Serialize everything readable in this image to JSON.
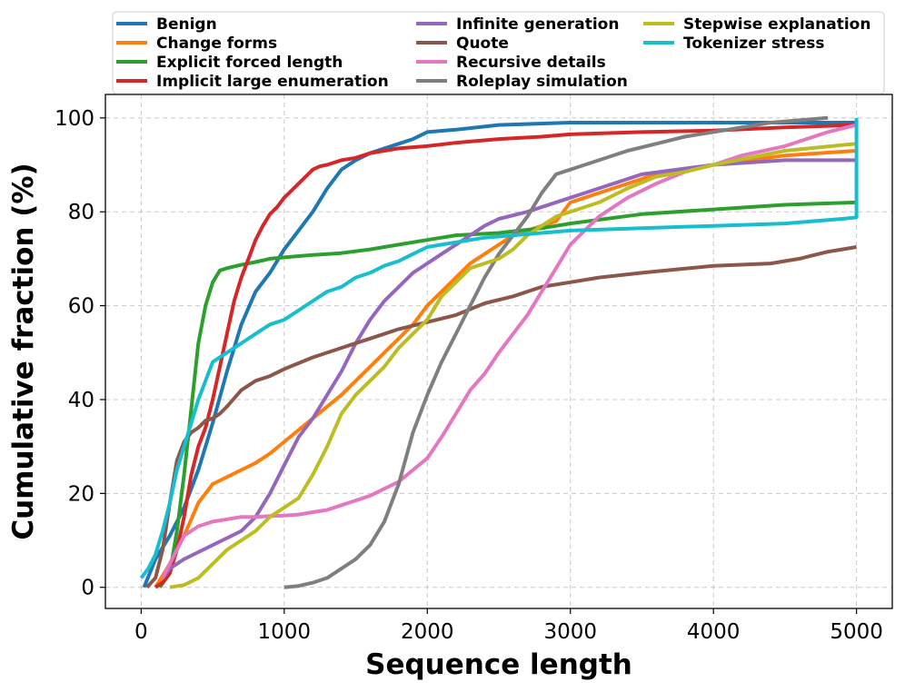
{
  "chart_data": {
    "type": "line",
    "title": "",
    "xlabel": "Sequence length",
    "ylabel": "Cumulative fraction (%)",
    "xlim": [
      -250,
      5250
    ],
    "ylim": [
      -4.5,
      105
    ],
    "xticks": [
      0,
      1000,
      2000,
      3000,
      4000,
      5000
    ],
    "yticks": [
      0,
      20,
      40,
      60,
      80,
      100
    ],
    "grid": true,
    "legend_position": "top, above plot",
    "series": [
      {
        "name": "Benign",
        "color": "#1f77b4",
        "x": [
          20,
          100,
          200,
          300,
          400,
          500,
          600,
          700,
          800,
          900,
          1000,
          1100,
          1200,
          1300,
          1400,
          1500,
          1600,
          1700,
          1800,
          1900,
          2000,
          2200,
          2500,
          3000,
          4000,
          5000
        ],
        "y": [
          0,
          6,
          11,
          17,
          25,
          35,
          46,
          56,
          63,
          67,
          72,
          76,
          80,
          85,
          89,
          91,
          92.5,
          93.5,
          94.5,
          95.5,
          97,
          97.5,
          98.5,
          99,
          99,
          99
        ]
      },
      {
        "name": "Change forms",
        "color": "#ff7f0e",
        "x": [
          100,
          200,
          300,
          400,
          500,
          600,
          700,
          800,
          900,
          1000,
          1100,
          1200,
          1300,
          1400,
          1500,
          1600,
          1700,
          1800,
          1900,
          2000,
          2100,
          2200,
          2300,
          2400,
          2500,
          2600,
          2700,
          2800,
          2900,
          3000,
          3200,
          3400,
          3600,
          3800,
          4000,
          4500,
          5000
        ],
        "y": [
          0,
          5,
          11,
          18,
          22,
          23.5,
          25,
          26.5,
          28.5,
          31,
          33.5,
          36,
          38.5,
          41,
          44,
          47,
          50,
          53,
          56,
          60,
          63,
          66,
          69,
          71,
          73,
          75,
          76,
          77,
          78,
          82,
          84,
          86,
          88,
          89,
          90,
          92,
          93
        ]
      },
      {
        "name": "Explicit forced length",
        "color": "#2ca02c",
        "x": [
          130,
          200,
          250,
          300,
          350,
          400,
          450,
          500,
          550,
          600,
          700,
          800,
          900,
          1000,
          1200,
          1400,
          1600,
          1800,
          2000,
          2200,
          2500,
          2800,
          3000,
          3500,
          4000,
          4500,
          5000
        ],
        "y": [
          0,
          3,
          12,
          24,
          38,
          52,
          60,
          65,
          67.5,
          68,
          68.7,
          69.3,
          70,
          70.3,
          70.8,
          71.2,
          72,
          73,
          74,
          75,
          75.5,
          76.5,
          77.5,
          79.5,
          80.5,
          81.5,
          82
        ]
      },
      {
        "name": "Implicit large enumeration",
        "color": "#d62728",
        "x": [
          100,
          150,
          200,
          250,
          300,
          350,
          400,
          450,
          500,
          550,
          600,
          650,
          700,
          750,
          800,
          850,
          900,
          950,
          1000,
          1050,
          1100,
          1150,
          1200,
          1250,
          1300,
          1400,
          1500,
          1600,
          1800,
          2000,
          2200,
          2500,
          2800,
          3000,
          3500,
          4000,
          4500,
          5000
        ],
        "y": [
          0,
          1,
          3,
          8,
          15,
          24,
          30,
          34,
          40,
          47,
          54,
          61,
          66,
          70,
          74,
          77,
          79.5,
          81,
          83,
          84.5,
          86,
          87.5,
          89,
          89.7,
          90,
          91,
          91.5,
          92.5,
          93.5,
          94,
          94.7,
          95.5,
          96,
          96.5,
          97,
          97.3,
          98,
          98.5
        ]
      },
      {
        "name": "Infinite generation",
        "color": "#9467bd",
        "x": [
          150,
          200,
          300,
          400,
          500,
          600,
          700,
          800,
          900,
          1000,
          1100,
          1200,
          1300,
          1400,
          1500,
          1600,
          1700,
          1800,
          1900,
          2000,
          2100,
          2200,
          2300,
          2400,
          2500,
          2700,
          3000,
          3200,
          3500,
          4000,
          4500,
          5000
        ],
        "y": [
          2,
          4,
          6,
          7.5,
          9,
          10.5,
          12,
          15,
          20,
          26,
          32,
          36,
          41,
          46,
          52,
          57,
          61,
          64,
          67,
          69,
          71,
          73,
          75,
          77,
          78.5,
          80,
          83,
          85,
          88,
          90,
          91,
          91
        ]
      },
      {
        "name": "Quote",
        "color": "#8c564b",
        "x": [
          40,
          100,
          150,
          200,
          250,
          300,
          350,
          400,
          450,
          500,
          550,
          600,
          700,
          800,
          900,
          1000,
          1200,
          1400,
          1600,
          1800,
          2000,
          2200,
          2400,
          2600,
          2800,
          3000,
          3200,
          3500,
          4000,
          4400,
          4600,
          4800,
          4900,
          5000
        ],
        "y": [
          0,
          2,
          8,
          18,
          27,
          31,
          33,
          34,
          35.5,
          36,
          37,
          38.5,
          42,
          44,
          45,
          46.5,
          49,
          51,
          53,
          55,
          56.5,
          58,
          60.5,
          62,
          64,
          65,
          66,
          67,
          68.5,
          69,
          70,
          71.5,
          72,
          72.5
        ]
      },
      {
        "name": "Recursive details",
        "color": "#e377c2",
        "x": [
          150,
          200,
          250,
          300,
          400,
          500,
          600,
          700,
          800,
          900,
          1000,
          1100,
          1200,
          1300,
          1400,
          1500,
          1600,
          1700,
          1800,
          1900,
          2000,
          2100,
          2200,
          2300,
          2400,
          2500,
          2600,
          2700,
          2800,
          2900,
          3000,
          3200,
          3400,
          3600,
          3800,
          4000,
          4200,
          4500,
          4800,
          5000
        ],
        "y": [
          2,
          5,
          8,
          11,
          13,
          14,
          14.5,
          15,
          15,
          15.2,
          15.3,
          15.5,
          16,
          16.5,
          17.5,
          18.5,
          19.5,
          21,
          22.5,
          25,
          27.5,
          32,
          37,
          42,
          45.5,
          50,
          54,
          58,
          63,
          68,
          73,
          79,
          83,
          86,
          88.5,
          90,
          92,
          94,
          97,
          98.5
        ]
      },
      {
        "name": "Roleplay simulation",
        "color": "#7f7f7f",
        "x": [
          1000,
          1100,
          1200,
          1300,
          1400,
          1500,
          1600,
          1700,
          1800,
          1900,
          2000,
          2100,
          2200,
          2300,
          2400,
          2500,
          2600,
          2700,
          2800,
          2900,
          3000,
          3200,
          3400,
          3600,
          3800,
          4000,
          4200,
          4400,
          4600,
          4800
        ],
        "y": [
          0,
          0.3,
          1,
          2,
          4,
          6,
          9,
          14,
          22,
          33,
          41,
          48,
          54,
          60,
          66,
          71,
          75,
          79,
          84,
          88,
          89,
          91,
          93,
          94.5,
          96,
          97,
          98,
          99,
          99.5,
          100
        ]
      },
      {
        "name": "Stepwise explanation",
        "color": "#bcbd22",
        "x": [
          200,
          300,
          400,
          500,
          600,
          700,
          800,
          900,
          1000,
          1100,
          1200,
          1300,
          1400,
          1500,
          1600,
          1700,
          1800,
          1900,
          2000,
          2100,
          2200,
          2300,
          2400,
          2500,
          2600,
          2700,
          2800,
          2900,
          3000,
          3200,
          3400,
          3600,
          3800,
          4000,
          4500,
          5000
        ],
        "y": [
          0,
          0.5,
          2,
          5,
          8,
          10,
          12,
          15,
          17,
          19,
          24,
          30,
          37,
          41,
          44,
          47,
          51,
          54,
          57,
          62,
          65,
          68,
          69,
          70,
          72,
          75,
          77,
          79,
          80,
          82,
          85,
          87.5,
          88.5,
          90,
          93,
          94.5
        ]
      },
      {
        "name": "Tokenizer stress",
        "color": "#17becf",
        "x": [
          0,
          50,
          100,
          150,
          200,
          250,
          300,
          350,
          400,
          450,
          500,
          600,
          700,
          800,
          900,
          1000,
          1100,
          1200,
          1300,
          1400,
          1500,
          1600,
          1700,
          1800,
          1900,
          2000,
          2100,
          2200,
          2400,
          2600,
          2800,
          3000,
          3500,
          4000,
          4500,
          4900,
          5000,
          5000
        ],
        "y": [
          2,
          4,
          7,
          12,
          18,
          25,
          30,
          35,
          40,
          44,
          48,
          50,
          52,
          54,
          56,
          57,
          59,
          61,
          63,
          64,
          66,
          67,
          68.5,
          69.5,
          71,
          72.5,
          73,
          73.5,
          74.5,
          75,
          75.5,
          76,
          76.5,
          77,
          77.5,
          78.5,
          78.8,
          100
        ]
      }
    ]
  }
}
